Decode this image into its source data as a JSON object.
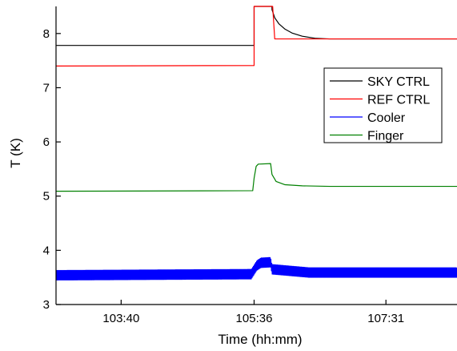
{
  "chart_data": {
    "type": "line",
    "title": "",
    "xlabel": "Time (hh:mm)",
    "ylabel": "T (K)",
    "x_ticks": [
      {
        "value": 103.6667,
        "label": "103:40"
      },
      {
        "value": 105.6,
        "label": "105:36"
      },
      {
        "value": 107.5167,
        "label": "107:31"
      }
    ],
    "y_ticks": [
      3,
      4,
      5,
      6,
      7,
      8
    ],
    "xlim": [
      102.72,
      108.55
    ],
    "ylim": [
      3.0,
      8.5
    ],
    "grid": false,
    "legend_position": "top-right",
    "series": [
      {
        "name": "SKY CTRL",
        "color": "#000000",
        "noise": 0,
        "points": [
          [
            102.72,
            7.78
          ],
          [
            105.6,
            7.78
          ],
          [
            105.6,
            8.02
          ],
          [
            105.6,
            8.5
          ],
          [
            105.86,
            8.5
          ],
          [
            105.86,
            8.44
          ],
          [
            105.9,
            8.29
          ],
          [
            105.96,
            8.18
          ],
          [
            106.05,
            8.08
          ],
          [
            106.15,
            8.01
          ],
          [
            106.3,
            7.95
          ],
          [
            106.5,
            7.91
          ],
          [
            106.7,
            7.9
          ],
          [
            108.55,
            7.9
          ]
        ]
      },
      {
        "name": "REF CTRL",
        "color": "#ff0000",
        "noise": 0,
        "points": [
          [
            102.72,
            7.4
          ],
          [
            105.6,
            7.41
          ],
          [
            105.6,
            7.49
          ],
          [
            105.6,
            8.5
          ],
          [
            105.87,
            8.5
          ],
          [
            105.9,
            7.9
          ],
          [
            108.55,
            7.9
          ]
        ]
      },
      {
        "name": "Cooler",
        "color": "#0000ff",
        "noise": 0.09,
        "points": [
          [
            102.72,
            3.54
          ],
          [
            105.56,
            3.56
          ],
          [
            105.64,
            3.72
          ],
          [
            105.7,
            3.77
          ],
          [
            105.84,
            3.78
          ],
          [
            105.86,
            3.65
          ],
          [
            106.4,
            3.59
          ],
          [
            108.55,
            3.59
          ]
        ]
      },
      {
        "name": "Finger",
        "color": "#008000",
        "noise": 0,
        "points": [
          [
            102.72,
            5.09
          ],
          [
            105.58,
            5.1
          ],
          [
            105.6,
            5.33
          ],
          [
            105.63,
            5.55
          ],
          [
            105.66,
            5.59
          ],
          [
            105.84,
            5.6
          ],
          [
            105.86,
            5.4
          ],
          [
            105.92,
            5.27
          ],
          [
            106.05,
            5.21
          ],
          [
            106.3,
            5.19
          ],
          [
            106.7,
            5.18
          ],
          [
            108.55,
            5.18
          ]
        ]
      }
    ]
  }
}
